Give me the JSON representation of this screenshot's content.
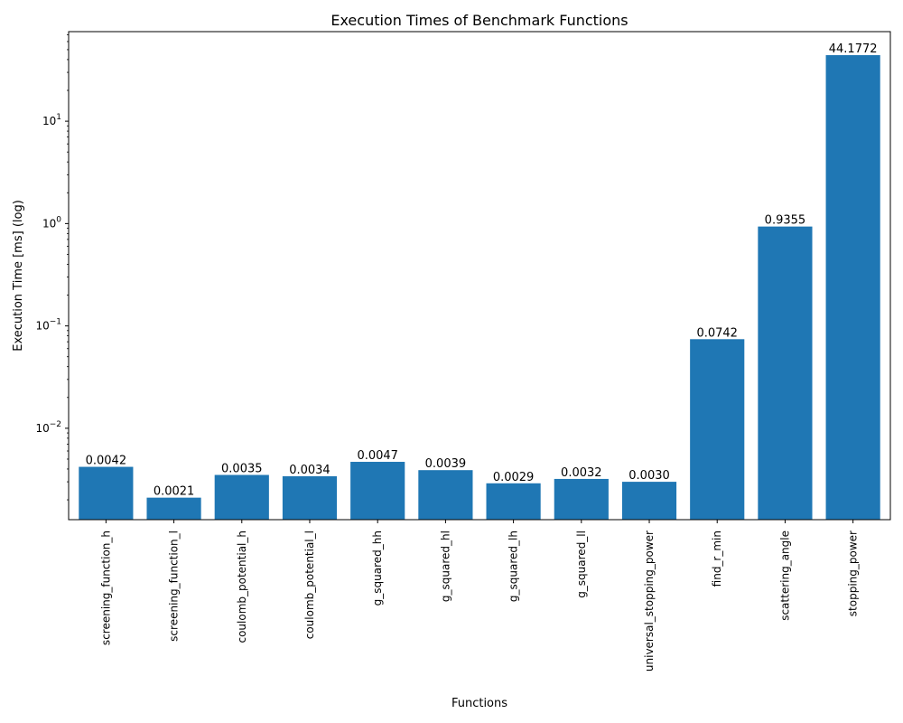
{
  "chart_data": {
    "type": "bar",
    "title": "Execution Times of Benchmark Functions",
    "xlabel": "Functions",
    "ylabel": "Execution Time [ms] (log)",
    "yscale": "log",
    "ylim": [
      0.00128,
      75
    ],
    "grid": false,
    "bar_color": "#1f77b4",
    "categories": [
      "screening_function_h",
      "screening_function_l",
      "coulomb_potential_h",
      "coulomb_potential_l",
      "g_squared_hh",
      "g_squared_hl",
      "g_squared_lh",
      "g_squared_ll",
      "universal_stopping_power",
      "find_r_min",
      "scattering_angle",
      "stopping_power"
    ],
    "values": [
      0.0042,
      0.0021,
      0.0035,
      0.0034,
      0.0047,
      0.0039,
      0.0029,
      0.0032,
      0.003,
      0.0742,
      0.9355,
      44.1772
    ],
    "data_labels": [
      "0.0042",
      "0.0021",
      "0.0035",
      "0.0034",
      "0.0047",
      "0.0039",
      "0.0029",
      "0.0032",
      "0.0030",
      "0.0742",
      "0.9355",
      "44.1772"
    ],
    "yticks": [
      {
        "value": 0.01,
        "base": "10",
        "exp": "−2"
      },
      {
        "value": 0.1,
        "base": "10",
        "exp": "−1"
      },
      {
        "value": 1,
        "base": "10",
        "exp": "0"
      },
      {
        "value": 10,
        "base": "10",
        "exp": "1"
      }
    ]
  }
}
